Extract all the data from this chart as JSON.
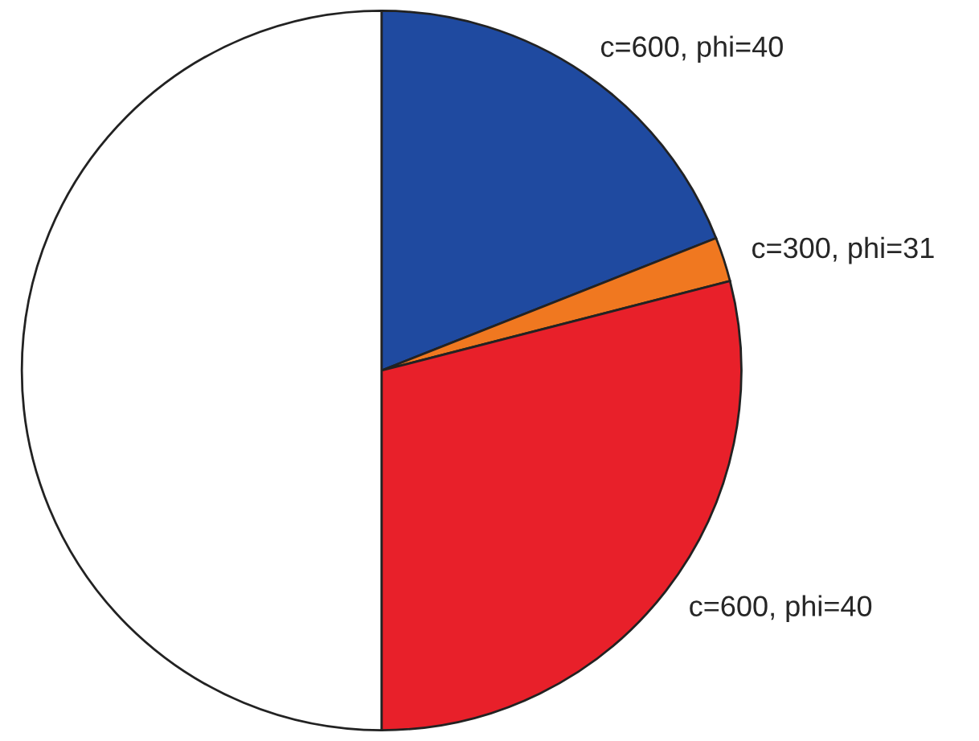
{
  "chart_data": {
    "type": "pie",
    "categories": [
      "c=600, phi=40",
      "c=300, phi=31",
      "c=600, phi=40",
      null
    ],
    "values": [
      19,
      2,
      29,
      50
    ],
    "colors": [
      "#1f4aa0",
      "#f07820",
      "#e8202a",
      "#ffffff"
    ]
  }
}
